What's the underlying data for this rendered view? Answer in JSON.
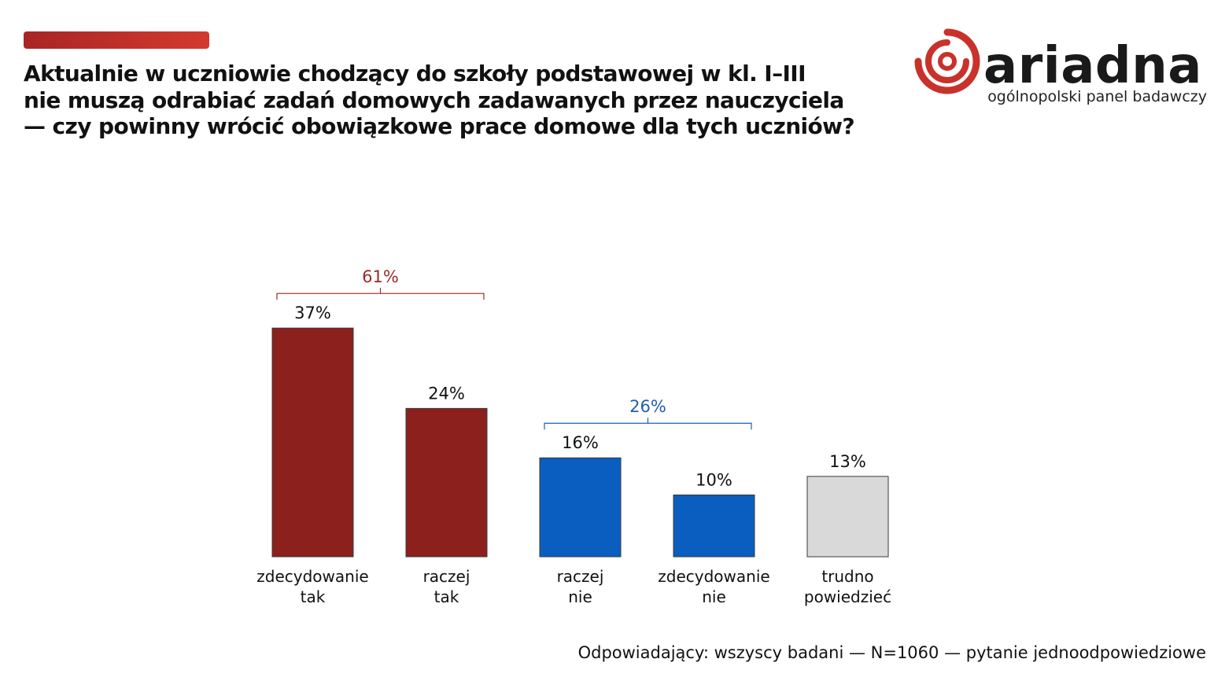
{
  "header": {
    "title_lines": [
      "Aktualnie w uczniowie chodzący do szkoły podstawowej w kl. I–III",
      "nie muszą odrabiać zadań domowych zadawanych przez nauczyciela",
      "— czy powinny wrócić obowiązkowe prace domowe dla tych uczniów?"
    ]
  },
  "logo": {
    "wordmark": "ariadna",
    "tagline": "ogólnopolski panel badawczy",
    "colors": {
      "ring": "#c8322b",
      "text": "#1a1a1a"
    }
  },
  "chart_data": {
    "type": "bar",
    "title": "Aktualnie w uczniowie chodzący do szkoły podstawowej w kl. I–III nie muszą odrabiać zadań domowych zadawanych przez nauczyciela — czy powinny wrócić obowiązkowe prace domowe dla tych uczniów?",
    "unit": "%",
    "ylim": [
      0,
      40
    ],
    "grid": false,
    "categories": [
      [
        "zdecydowanie",
        "tak"
      ],
      [
        "raczej",
        "tak"
      ],
      [
        "raczej",
        "nie"
      ],
      [
        "zdecydowanie",
        "nie"
      ],
      [
        "trudno",
        "powiedzieć"
      ]
    ],
    "values": [
      37,
      24,
      16,
      10,
      13
    ],
    "value_labels": [
      "37%",
      "24%",
      "16%",
      "10%",
      "13%"
    ],
    "bar_colors": [
      "#8b201d",
      "#8b201d",
      "#0a5ec0",
      "#0a5ec0",
      "#d9d9d9"
    ],
    "groups": [
      {
        "label": "61%",
        "value": 61,
        "from": 0,
        "to": 1,
        "color": "#9b2a24"
      },
      {
        "label": "26%",
        "value": 26,
        "from": 2,
        "to": 3,
        "color": "#1e5db5"
      }
    ]
  },
  "footnote": "Odpowiadający: wszyscy badani — N=1060 — pytanie jednoodpowiedziowe"
}
